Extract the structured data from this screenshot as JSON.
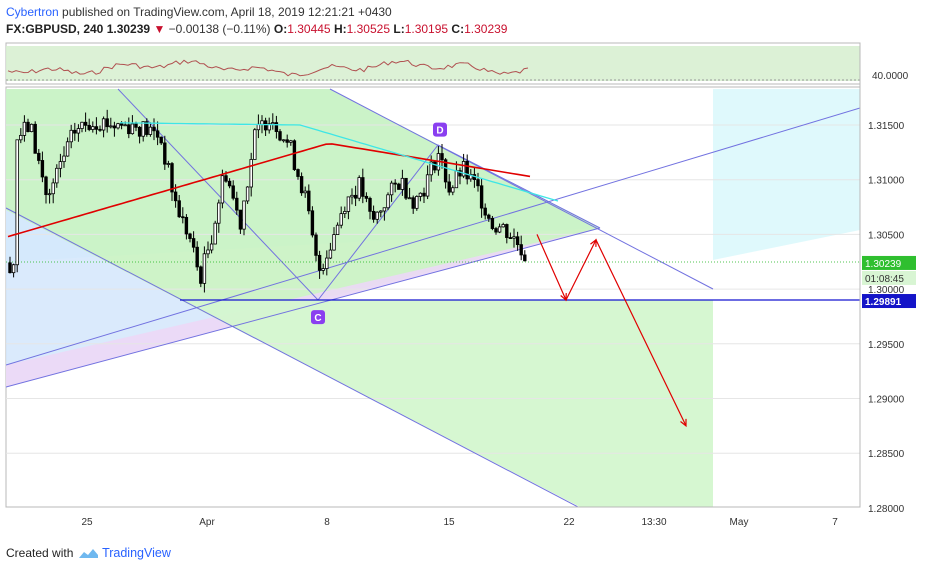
{
  "header": {
    "author": "Cybertron",
    "published_text": "published on TradingView.com, April 18, 2019 12:21:21 +0430",
    "symbol": "FX:GBPUSD, 240",
    "last": "1.30239",
    "change_arrow": "▼",
    "change": "−0.00138 (−0.11%)",
    "open_label": "O:",
    "open": "1.30445",
    "high_label": "H:",
    "high": "1.30525",
    "low_label": "L:",
    "low": "1.30195",
    "close_label": "C:",
    "close": "1.30239"
  },
  "footer": {
    "created_with": "Created with",
    "brand": "TradingView",
    "logo_icon": "tradingview-cloud-icon"
  },
  "colors": {
    "candle": "#000000",
    "ma_slow": "#e00000",
    "ma_fast": "#3ee6e6",
    "rsi": "#b05050",
    "pattern_green": "#c9f2c2",
    "pattern_blue": "#d4e6fb",
    "pattern_purple": "#ecd8f6",
    "pattern_cyan": "#d6f8fb",
    "trendline": "#7272e0",
    "level_line": "#1414d0",
    "arrow": "#e00000",
    "last_price": "#18b418"
  },
  "chart_data": {
    "type": "candlestick",
    "symbol": "FX:GBPUSD",
    "timeframe": "240",
    "x_ticks": [
      "25",
      "Apr",
      "8",
      "15",
      "22",
      "13:30",
      "May",
      "7"
    ],
    "y_ticks": [
      "1.31500",
      "1.31000",
      "1.30500",
      "1.30000",
      "1.29500",
      "1.29000",
      "1.28500",
      "1.28000"
    ],
    "ylim": [
      1.2795,
      1.3191
    ],
    "rsi_pane": {
      "level_label": "40.0000"
    },
    "price_labels": {
      "last_price": "1.30239",
      "countdown": "01:08:45",
      "horizontal_level": "1.29891"
    },
    "pattern_points": [
      {
        "label": "C",
        "price": 1.2989
      },
      {
        "label": "D",
        "price": 1.3133
      }
    ],
    "projection_path": [
      1.305,
      1.299,
      1.3045,
      1.2875
    ]
  }
}
